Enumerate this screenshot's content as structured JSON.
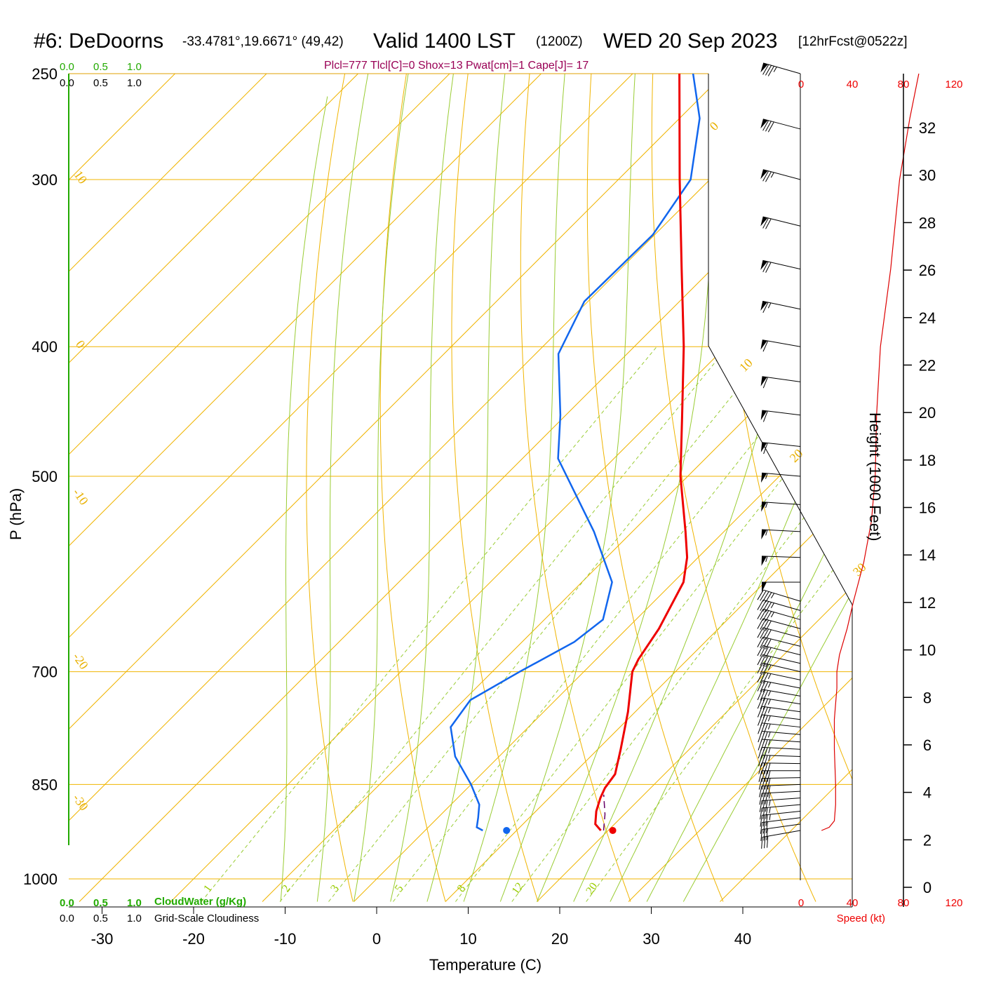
{
  "header": {
    "station": "#6: DeDoorns",
    "coords": "-33.4781°,19.6671° (49,42)",
    "valid": "Valid 1400 LST",
    "utc": "(1200Z)",
    "date": "WED 20 Sep 2023",
    "forecast": "[12hrFcst@0522z]"
  },
  "params": "Plcl=777 Tlcl[C]=0 Shox=13 Pwat[cm]=1 Cape[J]= 17",
  "cloud_top_ticks": [
    "0.0",
    "0.5",
    "1.0"
  ],
  "cloud_bottom": {
    "water_ticks": [
      "0.0",
      "0.5",
      "1.0"
    ],
    "water_label": "CloudWater (g/Kg)",
    "cloudiness_ticks": [
      "0.0",
      "0.5",
      "1.0"
    ],
    "cloudiness_label": "Grid-Scale Cloudiness"
  },
  "speed_axis": {
    "ticks": [
      "0",
      "40",
      "80",
      "120"
    ],
    "label": "Speed (kt)"
  },
  "colors": {
    "isotherm": "#f0b400",
    "dry_adiabat": "#f0b400",
    "moist_adiabat": "#99cc33",
    "mixing_ratio": "#99cc33",
    "temperature": "#ee0000",
    "dewpoint": "#1166ee",
    "parcel": "#660066",
    "cloud": "#22aa00",
    "speed": "#dd0000"
  },
  "chart_data": {
    "type": "line",
    "title": "#6: DeDoorns  Valid 1400 LST (1200Z) WED 20 Sep 2023",
    "xlabel": "Temperature (C)",
    "ylabel": "P (hPa)",
    "y2label": "Height (1000 Feet)",
    "y_scale": "log",
    "skew": "skew-T",
    "xlim": [
      -36,
      36
    ],
    "ylim": [
      1030,
      250
    ],
    "x_ticks": [
      -30,
      -20,
      -10,
      0,
      10,
      20,
      30,
      40
    ],
    "p_ticks": [
      250,
      300,
      400,
      500,
      700,
      850,
      1000
    ],
    "height_ticks": [
      0,
      2,
      4,
      6,
      8,
      10,
      12,
      14,
      16,
      18,
      20,
      22,
      24,
      26,
      28,
      30,
      32
    ],
    "isotherm_labels": [
      {
        "label": "10",
        "p": 300
      },
      {
        "label": "0",
        "p": 400
      },
      {
        "label": "-10",
        "p": 520
      },
      {
        "label": "-20",
        "p": 690
      },
      {
        "label": "-30",
        "p": 880
      },
      {
        "label": "0",
        "p": 275
      },
      {
        "label": "10",
        "p": 415
      },
      {
        "label": "20",
        "p": 485
      },
      {
        "label": "30",
        "p": 590
      }
    ],
    "isotherms": [
      -110,
      -100,
      -90,
      -80,
      -70,
      -60,
      -50,
      -40,
      -30,
      -20,
      -10,
      0,
      10,
      20,
      30,
      40
    ],
    "dry_adiabats_K": [
      270,
      280,
      290,
      300,
      310,
      320,
      330,
      340,
      350,
      360,
      370,
      380,
      390,
      400,
      410,
      420,
      430,
      440,
      450,
      460,
      470,
      480
    ],
    "moist_adiabats_C": [
      -8,
      -4,
      0,
      4,
      8,
      12,
      16,
      20,
      24,
      28,
      32,
      36
    ],
    "mixing_ratio_gkg": [
      1,
      2,
      3,
      5,
      8,
      12,
      20
    ],
    "mixing_ratio_labels": [
      "1",
      "2",
      "3",
      "5",
      "8",
      "12",
      "20"
    ],
    "series": [
      {
        "name": "",
        "role": "temperature",
        "points": [
          {
            "p": 920,
            "t": 19.2
          },
          {
            "p": 910,
            "t": 17.9
          },
          {
            "p": 890,
            "t": 16.6
          },
          {
            "p": 870,
            "t": 15.6
          },
          {
            "p": 855,
            "t": 15.0
          },
          {
            "p": 835,
            "t": 14.6
          },
          {
            "p": 800,
            "t": 12.5
          },
          {
            "p": 750,
            "t": 9.2
          },
          {
            "p": 700,
            "t": 5.3
          },
          {
            "p": 685,
            "t": 4.6
          },
          {
            "p": 650,
            "t": 3.5
          },
          {
            "p": 600,
            "t": 1.1
          },
          {
            "p": 575,
            "t": -1.2
          },
          {
            "p": 550,
            "t": -4.2
          },
          {
            "p": 500,
            "t": -10.8
          },
          {
            "p": 450,
            "t": -17.3
          },
          {
            "p": 400,
            "t": -24.6
          },
          {
            "p": 350,
            "t": -33.3
          },
          {
            "p": 300,
            "t": -43.3
          },
          {
            "p": 250,
            "t": -54.9
          }
        ]
      },
      {
        "name": "",
        "role": "dewpoint",
        "points": [
          {
            "p": 920,
            "t": 6.3
          },
          {
            "p": 915,
            "t": 5.3
          },
          {
            "p": 900,
            "t": 4.4
          },
          {
            "p": 880,
            "t": 3.1
          },
          {
            "p": 850,
            "t": 0.0
          },
          {
            "p": 810,
            "t": -4.8
          },
          {
            "p": 770,
            "t": -8.5
          },
          {
            "p": 735,
            "t": -9.3
          },
          {
            "p": 700,
            "t": -7.0
          },
          {
            "p": 665,
            "t": -4.3
          },
          {
            "p": 640,
            "t": -3.6
          },
          {
            "p": 600,
            "t": -6.7
          },
          {
            "p": 550,
            "t": -14.2
          },
          {
            "p": 485,
            "t": -26.1
          },
          {
            "p": 450,
            "t": -30.6
          },
          {
            "p": 405,
            "t": -37.5
          },
          {
            "p": 370,
            "t": -40.4
          },
          {
            "p": 330,
            "t": -40.2
          },
          {
            "p": 300,
            "t": -42.1
          },
          {
            "p": 270,
            "t": -47.8
          },
          {
            "p": 250,
            "t": -53.4
          }
        ]
      },
      {
        "name": "",
        "role": "parcel",
        "points": [
          {
            "p": 920,
            "t": 19.5
          },
          {
            "p": 895,
            "t": 17.9
          },
          {
            "p": 865,
            "t": 15.6
          }
        ]
      }
    ],
    "surface_markers": [
      {
        "role": "temperature",
        "p": 920,
        "t": 20.5
      },
      {
        "role": "dewpoint",
        "p": 920,
        "t": 8.9
      }
    ],
    "winds": [
      {
        "p": 920,
        "speed_kt": 28,
        "dir_deg": 260
      },
      {
        "p": 910,
        "speed_kt": 30,
        "dir_deg": 262
      },
      {
        "p": 900,
        "speed_kt": 32,
        "dir_deg": 263
      },
      {
        "p": 890,
        "speed_kt": 34,
        "dir_deg": 264
      },
      {
        "p": 880,
        "speed_kt": 35,
        "dir_deg": 265
      },
      {
        "p": 870,
        "speed_kt": 36,
        "dir_deg": 266
      },
      {
        "p": 860,
        "speed_kt": 37,
        "dir_deg": 267
      },
      {
        "p": 850,
        "speed_kt": 38,
        "dir_deg": 268
      },
      {
        "p": 840,
        "speed_kt": 38,
        "dir_deg": 269
      },
      {
        "p": 830,
        "speed_kt": 38,
        "dir_deg": 270
      },
      {
        "p": 820,
        "speed_kt": 38,
        "dir_deg": 271
      },
      {
        "p": 810,
        "speed_kt": 37,
        "dir_deg": 272
      },
      {
        "p": 800,
        "speed_kt": 37,
        "dir_deg": 273
      },
      {
        "p": 790,
        "speed_kt": 37,
        "dir_deg": 274
      },
      {
        "p": 780,
        "speed_kt": 36,
        "dir_deg": 275
      },
      {
        "p": 770,
        "speed_kt": 36,
        "dir_deg": 276
      },
      {
        "p": 760,
        "speed_kt": 36,
        "dir_deg": 277
      },
      {
        "p": 750,
        "speed_kt": 36,
        "dir_deg": 278
      },
      {
        "p": 740,
        "speed_kt": 36,
        "dir_deg": 279
      },
      {
        "p": 730,
        "speed_kt": 36,
        "dir_deg": 280
      },
      {
        "p": 720,
        "speed_kt": 36,
        "dir_deg": 281
      },
      {
        "p": 710,
        "speed_kt": 37,
        "dir_deg": 282
      },
      {
        "p": 700,
        "speed_kt": 37,
        "dir_deg": 283
      },
      {
        "p": 690,
        "speed_kt": 38,
        "dir_deg": 283
      },
      {
        "p": 680,
        "speed_kt": 38,
        "dir_deg": 284
      },
      {
        "p": 670,
        "speed_kt": 40,
        "dir_deg": 284
      },
      {
        "p": 660,
        "speed_kt": 41,
        "dir_deg": 285
      },
      {
        "p": 650,
        "speed_kt": 42,
        "dir_deg": 285
      },
      {
        "p": 640,
        "speed_kt": 43,
        "dir_deg": 286
      },
      {
        "p": 630,
        "speed_kt": 44,
        "dir_deg": 286
      },
      {
        "p": 620,
        "speed_kt": 45,
        "dir_deg": 287
      },
      {
        "p": 600,
        "speed_kt": 52,
        "dir_deg": 270
      },
      {
        "p": 575,
        "speed_kt": 54,
        "dir_deg": 272
      },
      {
        "p": 550,
        "speed_kt": 55,
        "dir_deg": 273
      },
      {
        "p": 525,
        "speed_kt": 56,
        "dir_deg": 274
      },
      {
        "p": 500,
        "speed_kt": 57,
        "dir_deg": 275
      },
      {
        "p": 475,
        "speed_kt": 58,
        "dir_deg": 276
      },
      {
        "p": 450,
        "speed_kt": 60,
        "dir_deg": 277
      },
      {
        "p": 425,
        "speed_kt": 60,
        "dir_deg": 278
      },
      {
        "p": 400,
        "speed_kt": 62,
        "dir_deg": 280
      },
      {
        "p": 375,
        "speed_kt": 65,
        "dir_deg": 282
      },
      {
        "p": 350,
        "speed_kt": 70,
        "dir_deg": 283
      },
      {
        "p": 325,
        "speed_kt": 72,
        "dir_deg": 284
      },
      {
        "p": 300,
        "speed_kt": 75,
        "dir_deg": 285
      },
      {
        "p": 275,
        "speed_kt": 80,
        "dir_deg": 285
      },
      {
        "p": 250,
        "speed_kt": 85,
        "dir_deg": 286
      }
    ],
    "wind_speed_profile": [
      {
        "p": 920,
        "kt": 16
      },
      {
        "p": 915,
        "kt": 22
      },
      {
        "p": 905,
        "kt": 26
      },
      {
        "p": 880,
        "kt": 27
      },
      {
        "p": 850,
        "kt": 27
      },
      {
        "p": 800,
        "kt": 26
      },
      {
        "p": 760,
        "kt": 26
      },
      {
        "p": 720,
        "kt": 28
      },
      {
        "p": 700,
        "kt": 28
      },
      {
        "p": 680,
        "kt": 30
      },
      {
        "p": 650,
        "kt": 36
      },
      {
        "p": 620,
        "kt": 41
      },
      {
        "p": 580,
        "kt": 49
      },
      {
        "p": 540,
        "kt": 55
      },
      {
        "p": 500,
        "kt": 58
      },
      {
        "p": 450,
        "kt": 59
      },
      {
        "p": 400,
        "kt": 62
      },
      {
        "p": 350,
        "kt": 70
      },
      {
        "p": 300,
        "kt": 77
      },
      {
        "p": 270,
        "kt": 85
      },
      {
        "p": 250,
        "kt": 92
      }
    ]
  }
}
